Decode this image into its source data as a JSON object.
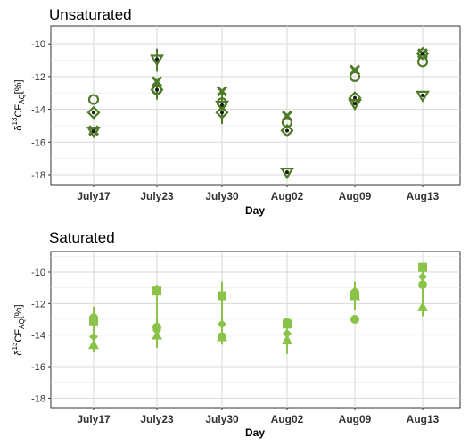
{
  "chart_data": [
    {
      "type": "scatter",
      "title": "Unsaturated",
      "xlabel": "Day",
      "ylabel_parts": {
        "delta": "δ",
        "sup": "13",
        "main": "CF",
        "sub": "AQ",
        "unit": "[%]"
      },
      "categories": [
        "July17",
        "July23",
        "July30",
        "Aug02",
        "Aug09",
        "Aug13"
      ],
      "ylim": [
        -18.6,
        -8.9
      ],
      "yticks": [
        -18,
        -16,
        -14,
        -12,
        -10
      ],
      "grid": true,
      "color": "#4f7a28",
      "series": [
        {
          "marker": "circle",
          "values": [
            -13.4,
            -12.8,
            -13.6,
            -14.8,
            -12.0,
            -11.1
          ]
        },
        {
          "marker": "x",
          "values": [
            -15.3,
            -12.3,
            -12.9,
            -14.4,
            -11.6,
            -10.6
          ]
        },
        {
          "marker": "diamond",
          "values": [
            -14.2,
            -12.8,
            -14.2,
            -15.3,
            -13.3,
            -10.6
          ]
        },
        {
          "marker": "triangle",
          "values": [
            -15.4,
            -11.0,
            -13.8,
            -17.9,
            -13.7,
            -13.2
          ]
        }
      ],
      "errorbars": [
        {
          "category": "July23",
          "y": -11.0,
          "lo": -11.7,
          "hi": -10.3
        },
        {
          "category": "July23",
          "y": -12.8,
          "lo": -13.4,
          "hi": -12.3
        },
        {
          "category": "July30",
          "y": -13.6,
          "lo": -14.9,
          "hi": -12.9
        }
      ]
    },
    {
      "type": "scatter",
      "title": "Saturated",
      "xlabel": "Day",
      "ylabel_parts": {
        "delta": "δ",
        "sup": "13",
        "main": "CF",
        "sub": "AQ",
        "unit": "[%]"
      },
      "categories": [
        "July17",
        "July23",
        "July30",
        "Aug02",
        "Aug09",
        "Aug13"
      ],
      "ylim": [
        -18.6,
        -8.7
      ],
      "yticks": [
        -18,
        -16,
        -14,
        -12,
        -10
      ],
      "grid": true,
      "color": "#8bc34a",
      "series": [
        {
          "marker": "square",
          "values": [
            -13.1,
            -11.2,
            -11.5,
            -13.3,
            -11.5,
            -9.7
          ]
        },
        {
          "marker": "circle",
          "values": [
            -12.9,
            -13.5,
            -14.1,
            -13.2,
            -13.0,
            -10.8
          ]
        },
        {
          "marker": "diamond",
          "values": [
            -14.1,
            -13.7,
            -13.3,
            -13.9,
            -11.2,
            -10.3
          ]
        },
        {
          "marker": "triangle",
          "values": [
            -14.6,
            -14.0,
            -14.1,
            -14.3,
            -11.5,
            -12.2
          ]
        }
      ],
      "errorbars": [
        {
          "category": "July17",
          "y": -13.5,
          "lo": -15.1,
          "hi": -12.2
        },
        {
          "category": "July23",
          "y": -12.5,
          "lo": -14.8,
          "hi": -10.8
        },
        {
          "category": "July30",
          "y": -12.6,
          "lo": -14.6,
          "hi": -10.6
        },
        {
          "category": "Aug02",
          "y": -13.8,
          "lo": -15.2,
          "hi": -13.0
        },
        {
          "category": "Aug09",
          "y": -11.4,
          "lo": -12.4,
          "hi": -10.6
        },
        {
          "category": "Aug13",
          "y": -11.4,
          "lo": -12.8,
          "hi": -9.5
        }
      ]
    }
  ]
}
